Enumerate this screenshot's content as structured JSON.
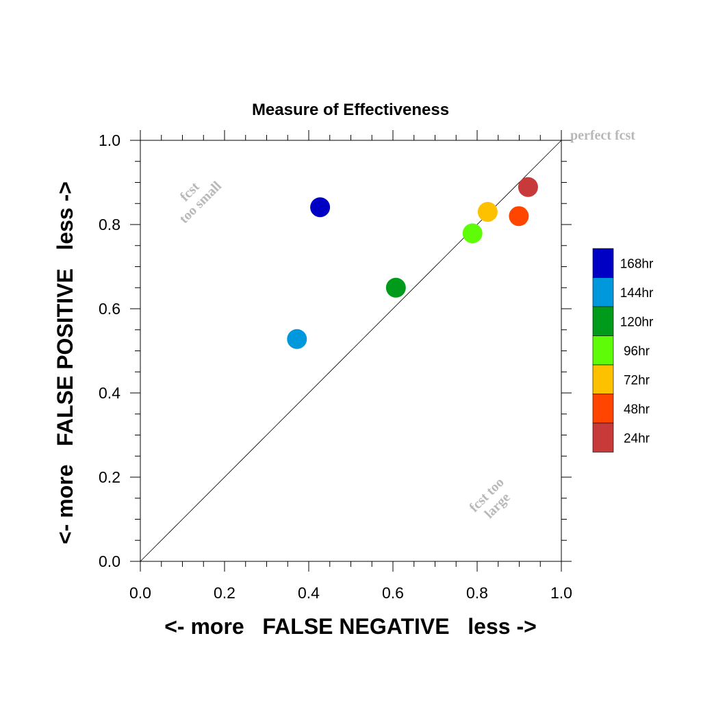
{
  "chart_data": {
    "type": "scatter",
    "title": "Measure of Effectiveness",
    "xlabel": "<- more   FALSE NEGATIVE   less ->",
    "ylabel": "<- more   FALSE POSITIVE   less ->",
    "xlim": [
      0,
      1
    ],
    "ylim": [
      0,
      1
    ],
    "x_ticks": [
      "0.0",
      "0.2",
      "0.4",
      "0.6",
      "0.8",
      "1.0"
    ],
    "y_ticks": [
      "0.0",
      "0.2",
      "0.4",
      "0.6",
      "0.8",
      "1.0"
    ],
    "x_tick_values": [
      0,
      0.2,
      0.4,
      0.6,
      0.8,
      1.0
    ],
    "y_tick_values": [
      0,
      0.2,
      0.4,
      0.6,
      0.8,
      1.0
    ],
    "grid": false,
    "legend_position": "right",
    "reference_line": {
      "from": [
        0,
        0
      ],
      "to": [
        1,
        1
      ]
    },
    "annotations": {
      "perfect": "perfect fcst",
      "small_line1": "fcst",
      "small_line2": "too small",
      "large_line1": "fcst too",
      "large_line2": "large"
    },
    "series": [
      {
        "name": "168hr",
        "color": "#0000c4",
        "x": 0.427,
        "y": 0.841
      },
      {
        "name": "144hr",
        "color": "#0098dc",
        "x": 0.372,
        "y": 0.528
      },
      {
        "name": "120hr",
        "color": "#009b1b",
        "x": 0.607,
        "y": 0.65
      },
      {
        "name": "96hr",
        "color": "#5ffc07",
        "x": 0.789,
        "y": 0.779
      },
      {
        "name": "72hr",
        "color": "#fdc100",
        "x": 0.825,
        "y": 0.83
      },
      {
        "name": "48hr",
        "color": "#ff4500",
        "x": 0.899,
        "y": 0.82
      },
      {
        "name": "24hr",
        "color": "#c83939",
        "x": 0.921,
        "y": 0.889
      }
    ]
  }
}
